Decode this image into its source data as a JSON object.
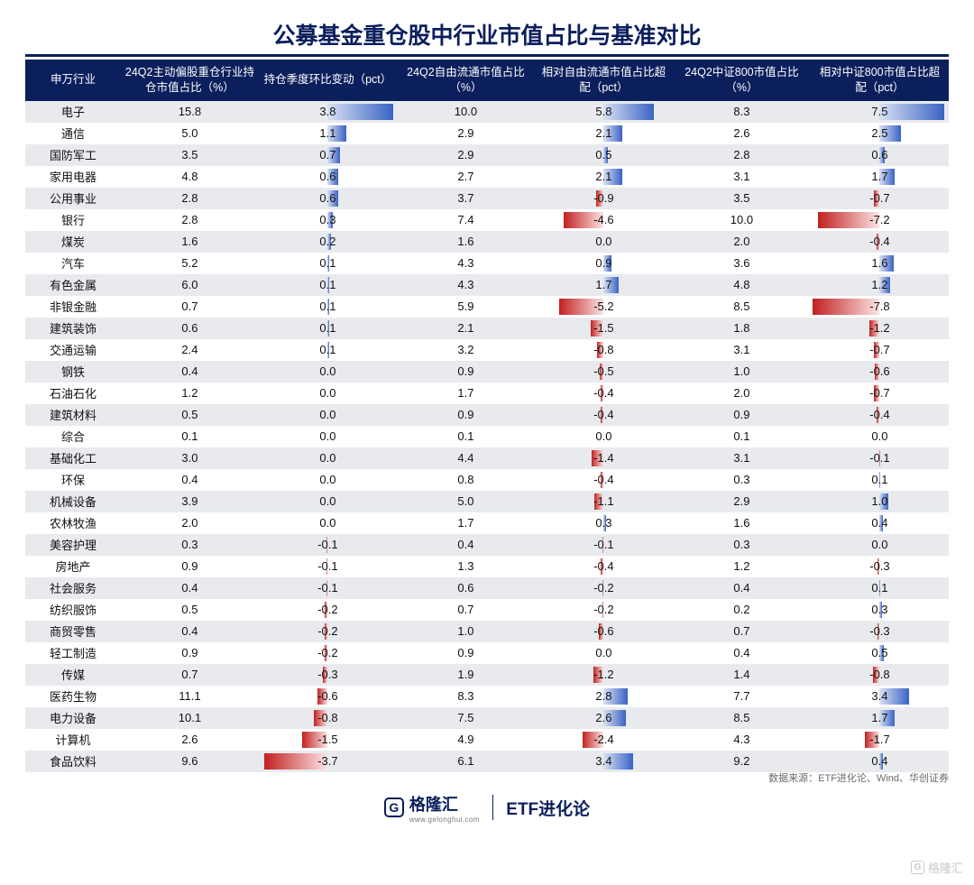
{
  "title": "公募基金重仓股中行业市值占比与基准对比",
  "columns": [
    "申万行业",
    "24Q2主动偏股重仓行业持仓市值占比（%）",
    "持仓季度环比变动（pct）",
    "24Q2自由流通市值占比（%）",
    "相对自由流通市值占比超配（pct）",
    "24Q2中证800市值占比（%）",
    "相对中证800市值占比超配（pct）"
  ],
  "styling": {
    "header_bg": "#0b1f5c",
    "header_fg": "#ffffff",
    "row_odd_bg": "#e8eaee",
    "row_even_bg": "#ffffff",
    "text_color": "#111111",
    "title_fontsize": 25,
    "body_fontsize": 13,
    "header_fontsize": 12.5,
    "bar_pos_gradient": [
      "#d9e2f3",
      "#3a63c4"
    ],
    "bar_neg_gradient": [
      "#c22020",
      "#fce4e4"
    ],
    "bar_cols": {
      "c3": {
        "min": -4.0,
        "max": 4.0
      },
      "c5": {
        "min": -8.0,
        "max": 8.0
      },
      "c7": {
        "min": -8.0,
        "max": 8.0
      }
    }
  },
  "rows": [
    {
      "name": "电子",
      "c2": "15.8",
      "c3": 3.8,
      "c4": "10.0",
      "c5": 5.8,
      "c6": "8.3",
      "c7": 7.5
    },
    {
      "name": "通信",
      "c2": "5.0",
      "c3": 1.1,
      "c4": "2.9",
      "c5": 2.1,
      "c6": "2.6",
      "c7": 2.5
    },
    {
      "name": "国防军工",
      "c2": "3.5",
      "c3": 0.7,
      "c4": "2.9",
      "c5": 0.5,
      "c6": "2.8",
      "c7": 0.6
    },
    {
      "name": "家用电器",
      "c2": "4.8",
      "c3": 0.6,
      "c4": "2.7",
      "c5": 2.1,
      "c6": "3.1",
      "c7": 1.7
    },
    {
      "name": "公用事业",
      "c2": "2.8",
      "c3": 0.6,
      "c4": "3.7",
      "c5": -0.9,
      "c6": "3.5",
      "c7": -0.7
    },
    {
      "name": "银行",
      "c2": "2.8",
      "c3": 0.3,
      "c4": "7.4",
      "c5": -4.6,
      "c6": "10.0",
      "c7": -7.2
    },
    {
      "name": "煤炭",
      "c2": "1.6",
      "c3": 0.2,
      "c4": "1.6",
      "c5": 0.0,
      "c6": "2.0",
      "c7": -0.4
    },
    {
      "name": "汽车",
      "c2": "5.2",
      "c3": 0.1,
      "c4": "4.3",
      "c5": 0.9,
      "c6": "3.6",
      "c7": 1.6
    },
    {
      "name": "有色金属",
      "c2": "6.0",
      "c3": 0.1,
      "c4": "4.3",
      "c5": 1.7,
      "c6": "4.8",
      "c7": 1.2
    },
    {
      "name": "非银金融",
      "c2": "0.7",
      "c3": 0.1,
      "c4": "5.9",
      "c5": -5.2,
      "c6": "8.5",
      "c7": -7.8
    },
    {
      "name": "建筑装饰",
      "c2": "0.6",
      "c3": 0.1,
      "c4": "2.1",
      "c5": -1.5,
      "c6": "1.8",
      "c7": -1.2
    },
    {
      "name": "交通运输",
      "c2": "2.4",
      "c3": 0.1,
      "c4": "3.2",
      "c5": -0.8,
      "c6": "3.1",
      "c7": -0.7
    },
    {
      "name": "钢铁",
      "c2": "0.4",
      "c3": 0.0,
      "c4": "0.9",
      "c5": -0.5,
      "c6": "1.0",
      "c7": -0.6
    },
    {
      "name": "石油石化",
      "c2": "1.2",
      "c3": 0.0,
      "c4": "1.7",
      "c5": -0.4,
      "c6": "2.0",
      "c7": -0.7
    },
    {
      "name": "建筑材料",
      "c2": "0.5",
      "c3": 0.0,
      "c4": "0.9",
      "c5": -0.4,
      "c6": "0.9",
      "c7": -0.4
    },
    {
      "name": "综合",
      "c2": "0.1",
      "c3": 0.0,
      "c4": "0.1",
      "c5": 0.0,
      "c6": "0.1",
      "c7": 0.0
    },
    {
      "name": "基础化工",
      "c2": "3.0",
      "c3": 0.0,
      "c4": "4.4",
      "c5": -1.4,
      "c6": "3.1",
      "c7": -0.1
    },
    {
      "name": "环保",
      "c2": "0.4",
      "c3": 0.0,
      "c4": "0.8",
      "c5": -0.4,
      "c6": "0.3",
      "c7": 0.1
    },
    {
      "name": "机械设备",
      "c2": "3.9",
      "c3": 0.0,
      "c4": "5.0",
      "c5": -1.1,
      "c6": "2.9",
      "c7": 1.0
    },
    {
      "name": "农林牧渔",
      "c2": "2.0",
      "c3": 0.0,
      "c4": "1.7",
      "c5": 0.3,
      "c6": "1.6",
      "c7": 0.4
    },
    {
      "name": "美容护理",
      "c2": "0.3",
      "c3": -0.1,
      "c4": "0.4",
      "c5": -0.1,
      "c6": "0.3",
      "c7": 0.0
    },
    {
      "name": "房地产",
      "c2": "0.9",
      "c3": -0.1,
      "c4": "1.3",
      "c5": -0.4,
      "c6": "1.2",
      "c7": -0.3
    },
    {
      "name": "社会服务",
      "c2": "0.4",
      "c3": -0.1,
      "c4": "0.6",
      "c5": -0.2,
      "c6": "0.4",
      "c7": 0.1
    },
    {
      "name": "纺织服饰",
      "c2": "0.5",
      "c3": -0.2,
      "c4": "0.7",
      "c5": -0.2,
      "c6": "0.2",
      "c7": 0.3
    },
    {
      "name": "商贸零售",
      "c2": "0.4",
      "c3": -0.2,
      "c4": "1.0",
      "c5": -0.6,
      "c6": "0.7",
      "c7": -0.3
    },
    {
      "name": "轻工制造",
      "c2": "0.9",
      "c3": -0.2,
      "c4": "0.9",
      "c5": 0.0,
      "c6": "0.4",
      "c7": 0.5
    },
    {
      "name": "传媒",
      "c2": "0.7",
      "c3": -0.3,
      "c4": "1.9",
      "c5": -1.2,
      "c6": "1.4",
      "c7": -0.8
    },
    {
      "name": "医药生物",
      "c2": "11.1",
      "c3": -0.6,
      "c4": "8.3",
      "c5": 2.8,
      "c6": "7.7",
      "c7": 3.4
    },
    {
      "name": "电力设备",
      "c2": "10.1",
      "c3": -0.8,
      "c4": "7.5",
      "c5": 2.6,
      "c6": "8.5",
      "c7": 1.7
    },
    {
      "name": "计算机",
      "c2": "2.6",
      "c3": -1.5,
      "c4": "4.9",
      "c5": -2.4,
      "c6": "4.3",
      "c7": -1.7
    },
    {
      "name": "食品饮料",
      "c2": "9.6",
      "c3": -3.7,
      "c4": "6.1",
      "c5": 3.4,
      "c6": "9.2",
      "c7": 0.4
    }
  ],
  "footer": {
    "source": "数据来源：ETF进化论、Wind、华创证券",
    "logo_cn": "格隆汇",
    "logo_en": "www.gelonghui.com",
    "brand": "ETF进化论"
  },
  "watermark": "格隆汇"
}
